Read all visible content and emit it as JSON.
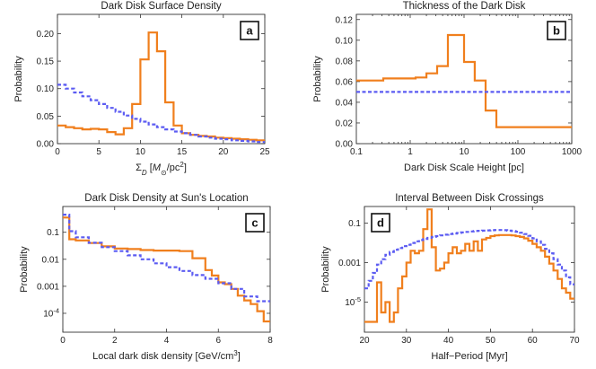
{
  "colors": {
    "orange": "#f07f1d",
    "blue": "#5c5cf2"
  },
  "chart_data": [
    {
      "id": "a",
      "type": "line",
      "title": "Dark Disk Surface Density",
      "xlabel_parts": [
        "Σ",
        "D",
        " [",
        "M",
        "⊙",
        "/pc",
        "2",
        "]"
      ],
      "ylabel": "Probability",
      "badge": "a",
      "xscale": "linear",
      "yscale": "linear",
      "xlim": [
        0,
        25
      ],
      "ylim": [
        0,
        0.235
      ],
      "xticks": [
        0,
        5,
        10,
        15,
        20,
        25
      ],
      "xticklabels": [
        "0",
        "5",
        "10",
        "15",
        "20",
        "25"
      ],
      "yticks": [
        0,
        0.05,
        0.1,
        0.15,
        0.2
      ],
      "yticklabels": [
        "0.00",
        "0.05",
        "0.10",
        "0.15",
        "0.20"
      ],
      "series": [
        {
          "color": "orange",
          "style": "solid",
          "kind": "step",
          "edges": [
            0,
            1,
            2,
            3,
            4,
            5,
            6,
            7,
            8,
            9,
            10,
            11,
            12,
            13,
            14,
            15,
            16,
            17,
            18,
            19,
            20,
            21,
            22,
            23,
            24,
            25
          ],
          "values": [
            0.033,
            0.03,
            0.028,
            0.026,
            0.027,
            0.026,
            0.021,
            0.017,
            0.028,
            0.072,
            0.153,
            0.202,
            0.168,
            0.075,
            0.033,
            0.019,
            0.016,
            0.014,
            0.013,
            0.011,
            0.01,
            0.009,
            0.008,
            0.007,
            0.006
          ]
        },
        {
          "color": "blue",
          "style": "dashed",
          "kind": "step",
          "edges": [
            0,
            1,
            2,
            3,
            4,
            5,
            6,
            7,
            8,
            9,
            10,
            11,
            12,
            13,
            14,
            15,
            16,
            17,
            18,
            19,
            20,
            21,
            22,
            23,
            24,
            25
          ],
          "values": [
            0.107,
            0.1,
            0.093,
            0.086,
            0.079,
            0.072,
            0.065,
            0.058,
            0.051,
            0.045,
            0.04,
            0.035,
            0.03,
            0.026,
            0.022,
            0.019,
            0.016,
            0.013,
            0.011,
            0.009,
            0.008,
            0.006,
            0.005,
            0.004,
            0.003
          ]
        }
      ]
    },
    {
      "id": "b",
      "type": "line",
      "title": "Thickness of the Dark Disk",
      "xlabel_parts": [
        "Dark Disk Scale Height [pc]"
      ],
      "ylabel": "Probability",
      "badge": "b",
      "xscale": "log",
      "yscale": "linear",
      "xlim": [
        0.1,
        1000
      ],
      "ylim": [
        0,
        0.125
      ],
      "xticks": [
        0.1,
        1,
        10,
        100,
        1000
      ],
      "xticklabels": [
        "0.1",
        "1",
        "10",
        "100",
        "1000"
      ],
      "yticks": [
        0,
        0.02,
        0.04,
        0.06,
        0.08,
        0.1,
        0.12
      ],
      "yticklabels": [
        "0.00",
        "0.02",
        "0.04",
        "0.06",
        "0.08",
        "0.10",
        "0.12"
      ],
      "series": [
        {
          "color": "orange",
          "style": "solid",
          "kind": "step",
          "edges": [
            0.1,
            0.316,
            0.631,
            1.26,
            2.0,
            3.16,
            5.01,
            10.0,
            15.8,
            25.1,
            39.8,
            1000
          ],
          "values": [
            0.061,
            0.063,
            0.063,
            0.064,
            0.068,
            0.075,
            0.105,
            0.079,
            0.061,
            0.032,
            0.016
          ]
        },
        {
          "color": "blue",
          "style": "dashed",
          "kind": "flat",
          "x": [
            0.1,
            1000
          ],
          "y": [
            0.05,
            0.05
          ]
        }
      ]
    },
    {
      "id": "c",
      "type": "line",
      "title": "Dark Disk Density at Sun's Location",
      "xlabel_parts": [
        "Local dark disk density [GeV/cm",
        "3",
        "]"
      ],
      "ylabel": "Probability",
      "badge": "c",
      "xscale": "linear",
      "yscale": "log",
      "xlim": [
        0,
        8
      ],
      "ylim": [
        2e-05,
        0.9
      ],
      "xticks": [
        0,
        2,
        4,
        6,
        8
      ],
      "xticklabels": [
        "0",
        "2",
        "4",
        "6",
        "8"
      ],
      "yticks": [
        0.0001,
        0.001,
        0.01,
        0.1
      ],
      "yticklabels": [
        "10^-4",
        "0.001",
        "0.01",
        "0.1"
      ],
      "series": [
        {
          "color": "orange",
          "style": "solid",
          "kind": "step",
          "edges": [
            0,
            0.25,
            0.5,
            1.0,
            1.5,
            2.0,
            2.5,
            3.0,
            3.5,
            4.0,
            4.5,
            5.0,
            5.5,
            5.75,
            6.0,
            6.25,
            6.5,
            6.75,
            7.0,
            7.25,
            7.5,
            7.75,
            8.0
          ],
          "values": [
            0.35,
            0.055,
            0.05,
            0.04,
            0.03,
            0.025,
            0.024,
            0.022,
            0.021,
            0.021,
            0.02,
            0.011,
            0.004,
            0.0025,
            0.0014,
            0.0012,
            0.0008,
            0.00045,
            0.0003,
            0.00022,
            0.00012,
            5e-05
          ]
        },
        {
          "color": "blue",
          "style": "dashed",
          "kind": "step",
          "edges": [
            0,
            0.25,
            0.5,
            1.0,
            1.5,
            2.0,
            2.5,
            3.0,
            3.5,
            4.0,
            4.5,
            5.0,
            5.5,
            6.0,
            6.5,
            7.0,
            7.5,
            8.0
          ],
          "values": [
            0.45,
            0.11,
            0.065,
            0.041,
            0.028,
            0.02,
            0.014,
            0.01,
            0.0071,
            0.0051,
            0.0037,
            0.0026,
            0.0019,
            0.0013,
            0.0008,
            0.00042,
            0.00028
          ]
        }
      ]
    },
    {
      "id": "d",
      "type": "line",
      "title": "Interval Between Disk Crossings",
      "xlabel_parts": [
        "Half−Period [Myr]"
      ],
      "ylabel": "Probability",
      "badge": "d",
      "xscale": "linear",
      "yscale": "log",
      "xlim": [
        20,
        70
      ],
      "ylim": [
        3e-07,
        0.7
      ],
      "xticks": [
        20,
        30,
        40,
        50,
        60,
        70
      ],
      "xticklabels": [
        "20",
        "30",
        "40",
        "50",
        "60",
        "70"
      ],
      "yticks": [
        1e-05,
        0.001,
        0.1
      ],
      "yticklabels": [
        "10^-5",
        "0.001",
        "0.1"
      ],
      "series": [
        {
          "color": "orange",
          "style": "solid",
          "kind": "step",
          "edges": [
            20,
            21,
            22,
            23,
            24,
            25,
            26,
            27,
            28,
            29,
            30,
            31,
            32,
            33,
            34,
            35,
            36,
            37,
            38,
            39,
            40,
            41,
            42,
            43,
            44,
            45,
            46,
            47,
            48,
            49,
            50,
            51,
            52,
            53,
            54,
            55,
            56,
            57,
            58,
            59,
            60,
            61,
            62,
            63,
            64,
            65,
            66,
            67,
            68,
            69,
            70
          ],
          "values": [
            1e-06,
            1e-06,
            1e-06,
            0.0001,
            3e-06,
            1e-05,
            1e-06,
            3e-06,
            5e-05,
            0.0002,
            0.001,
            0.004,
            0.003,
            0.004,
            0.05,
            0.5,
            0.006,
            0.0004,
            0.0005,
            0.001,
            0.003,
            0.006,
            0.003,
            0.004,
            0.009,
            0.004,
            0.012,
            0.004,
            0.015,
            0.018,
            0.022,
            0.024,
            0.025,
            0.025,
            0.025,
            0.024,
            0.022,
            0.02,
            0.017,
            0.013,
            0.009,
            0.006,
            0.004,
            0.002,
            0.0009,
            0.0004,
            0.00015,
            5e-05,
            3e-05,
            1.5e-05
          ]
        },
        {
          "color": "blue",
          "style": "dashed",
          "kind": "step",
          "edges": [
            20,
            21,
            22,
            23,
            24,
            25,
            26,
            27,
            28,
            29,
            30,
            31,
            32,
            33,
            34,
            35,
            36,
            37,
            38,
            39,
            40,
            41,
            42,
            43,
            44,
            45,
            46,
            47,
            48,
            49,
            50,
            51,
            52,
            53,
            54,
            55,
            56,
            57,
            58,
            59,
            60,
            61,
            62,
            63,
            64,
            65,
            66,
            67,
            68,
            69,
            70
          ],
          "values": [
            5e-05,
            0.00012,
            0.0003,
            0.0008,
            0.0015,
            0.0025,
            0.0035,
            0.0045,
            0.0055,
            0.0068,
            0.008,
            0.01,
            0.012,
            0.014,
            0.016,
            0.018,
            0.02,
            0.022,
            0.024,
            0.026,
            0.028,
            0.03,
            0.032,
            0.034,
            0.036,
            0.038,
            0.04,
            0.041,
            0.042,
            0.043,
            0.044,
            0.045,
            0.045,
            0.044,
            0.042,
            0.04,
            0.037,
            0.033,
            0.028,
            0.023,
            0.017,
            0.012,
            0.008,
            0.005,
            0.003,
            0.0015,
            0.0008,
            0.0004,
            0.00018,
            8e-05
          ]
        }
      ]
    }
  ]
}
